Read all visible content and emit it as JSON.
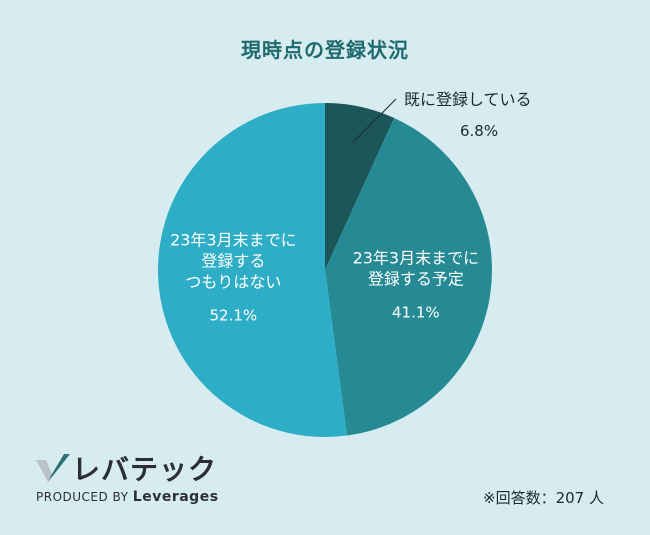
{
  "chart_data": {
    "type": "pie",
    "title": "現時点の登録状況",
    "start_angle_deg": 0,
    "direction": "clockwise",
    "slices": [
      {
        "label_lines": [
          "既に登録している"
        ],
        "value_text": "6.8",
        "value": 6.8,
        "color": "#1b5658",
        "label_position": "outside"
      },
      {
        "label_lines": [
          "23年3月末までに",
          "登録する予定"
        ],
        "value_text": "41.1",
        "value": 41.1,
        "color": "#268a94",
        "label_position": "inside"
      },
      {
        "label_lines": [
          "23年3月末までに",
          "登録する",
          "つもりはない"
        ],
        "value_text": "52.1",
        "value": 52.1,
        "color": "#2daec6",
        "label_position": "inside"
      }
    ],
    "unit": "%",
    "note": "※回答数：207 人"
  },
  "brand": {
    "name": "レバテック",
    "produced_by_prefix": "PRODUCED BY",
    "produced_by_company": "Leverages",
    "mark_color_light": "#b9c3c7",
    "mark_color_dark": "#2e6f73"
  }
}
